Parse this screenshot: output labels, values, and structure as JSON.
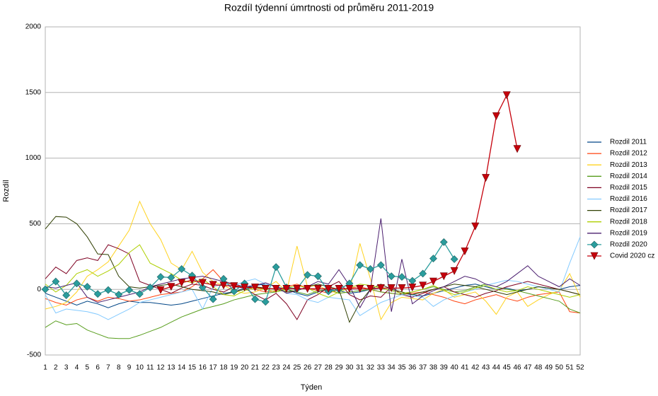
{
  "chart_data": {
    "type": "line",
    "title": "Rozdíl týdenní úmrtnosti od průměru 2011-2019",
    "x_label": "Týden",
    "y_label": "Rozdíl",
    "categories": [
      1,
      2,
      3,
      4,
      5,
      6,
      7,
      8,
      9,
      10,
      11,
      12,
      13,
      14,
      15,
      16,
      17,
      18,
      19,
      20,
      21,
      22,
      23,
      24,
      25,
      26,
      27,
      28,
      29,
      30,
      31,
      32,
      33,
      34,
      35,
      36,
      37,
      38,
      39,
      40,
      41,
      42,
      43,
      44,
      45,
      46,
      47,
      48,
      49,
      50,
      51,
      52
    ],
    "ylim": [
      -500,
      2000
    ],
    "yticks": [
      -500,
      0,
      500,
      1000,
      1500,
      2000
    ],
    "grid": true,
    "legend": "right",
    "series": [
      {
        "name": "Rozdil 2011",
        "color": "#004586",
        "values": [
          -30,
          -60,
          -90,
          -120,
          -90,
          -110,
          -140,
          -110,
          -90,
          -100,
          -100,
          -110,
          -120,
          -110,
          -90,
          -70,
          -50,
          -30,
          -20,
          10,
          30,
          40,
          20,
          0,
          -30,
          -50,
          -20,
          0,
          -10,
          -30,
          -20,
          0,
          10,
          -10,
          -30,
          -40,
          -50,
          -30,
          -10,
          10,
          30,
          40,
          20,
          0,
          10,
          -10,
          0,
          20,
          10,
          0,
          20,
          30
        ]
      },
      {
        "name": "Rozdil 2012",
        "color": "#ff420e",
        "values": [
          -70,
          -100,
          -120,
          -80,
          -60,
          -90,
          -60,
          -70,
          -90,
          -80,
          -60,
          -40,
          -30,
          -20,
          20,
          80,
          150,
          60,
          30,
          20,
          0,
          -20,
          -10,
          20,
          40,
          10,
          -10,
          -30,
          0,
          10,
          20,
          0,
          -20,
          -30,
          -40,
          -30,
          -20,
          -40,
          -60,
          -90,
          -110,
          -80,
          -60,
          -40,
          -70,
          -90,
          -60,
          -40,
          -30,
          -20,
          -170,
          -180
        ]
      },
      {
        "name": "Rozdil 2013",
        "color": "#ffd320",
        "values": [
          -150,
          -130,
          -100,
          -20,
          100,
          150,
          210,
          330,
          450,
          670,
          500,
          380,
          200,
          150,
          290,
          130,
          60,
          30,
          -10,
          -30,
          -20,
          10,
          60,
          -20,
          330,
          20,
          30,
          -10,
          -30,
          -20,
          350,
          80,
          -230,
          -100,
          -60,
          -70,
          -80,
          -30,
          0,
          -60,
          -40,
          -20,
          -90,
          -190,
          -60,
          -20,
          -130,
          -80,
          -40,
          -10,
          120,
          -60
        ]
      },
      {
        "name": "Rozdil 2014",
        "color": "#579d1c",
        "values": [
          -290,
          -240,
          -270,
          -260,
          -310,
          -340,
          -370,
          -375,
          -375,
          -350,
          -320,
          -290,
          -250,
          -210,
          -180,
          -150,
          -130,
          -110,
          -80,
          -60,
          -40,
          -30,
          -20,
          0,
          -20,
          -40,
          -10,
          0,
          -30,
          -20,
          -10,
          0,
          -20,
          -30,
          -40,
          -20,
          0,
          20,
          0,
          -20,
          -10,
          20,
          40,
          20,
          0,
          -10,
          -30,
          -50,
          -70,
          -90,
          -150,
          -180
        ]
      },
      {
        "name": "Rozdil 2015",
        "color": "#7e0021",
        "values": [
          80,
          170,
          120,
          220,
          240,
          220,
          340,
          310,
          270,
          60,
          30,
          0,
          -30,
          10,
          40,
          30,
          0,
          -20,
          20,
          10,
          -40,
          -80,
          -30,
          -110,
          -230,
          -80,
          -40,
          20,
          60,
          -40,
          -80,
          -50,
          -60,
          20,
          -40,
          -60,
          -30,
          0,
          20,
          -20,
          -40,
          -60,
          -30,
          -10,
          20,
          40,
          60,
          40,
          20,
          0,
          -20,
          -40
        ]
      },
      {
        "name": "Rozdil 2016",
        "color": "#83caff",
        "values": [
          -40,
          -180,
          -150,
          -160,
          -170,
          -190,
          -230,
          -190,
          -150,
          -100,
          -80,
          -60,
          -40,
          -20,
          0,
          -150,
          20,
          40,
          30,
          60,
          80,
          40,
          20,
          -30,
          -40,
          -80,
          -100,
          -60,
          -70,
          -80,
          -200,
          -150,
          -100,
          -70,
          -40,
          -50,
          -60,
          -130,
          -80,
          -50,
          -20,
          0,
          30,
          50,
          70,
          60,
          40,
          20,
          0,
          -20,
          200,
          400
        ]
      },
      {
        "name": "Rozdil 2017",
        "color": "#314004",
        "values": [
          460,
          555,
          550,
          500,
          400,
          270,
          265,
          100,
          20,
          10,
          20,
          30,
          40,
          20,
          0,
          -10,
          -20,
          -40,
          -20,
          0,
          20,
          10,
          0,
          -20,
          -10,
          20,
          40,
          20,
          0,
          -250,
          -100,
          0,
          40,
          0,
          -20,
          -40,
          -20,
          0,
          20,
          40,
          30,
          20,
          0,
          -20,
          -40,
          -20,
          0,
          20,
          10,
          0,
          -20,
          -40
        ]
      },
      {
        "name": "Rozdil 2018",
        "color": "#aecf00",
        "values": [
          40,
          -20,
          30,
          120,
          150,
          100,
          140,
          190,
          280,
          340,
          200,
          160,
          120,
          70,
          50,
          80,
          20,
          -40,
          -50,
          -10,
          10,
          0,
          -20,
          10,
          30,
          10,
          -30,
          -60,
          -20,
          10,
          40,
          30,
          10,
          -10,
          -30,
          -20,
          0,
          30,
          -10,
          -40,
          -20,
          10,
          30,
          0,
          -20,
          -10,
          20,
          0,
          -20,
          -40,
          -60,
          -40
        ]
      },
      {
        "name": "Rozdil 2019",
        "color": "#4b1f6f",
        "values": [
          20,
          10,
          30,
          50,
          -60,
          -100,
          -80,
          -60,
          -40,
          -20,
          20,
          40,
          60,
          80,
          90,
          100,
          80,
          60,
          40,
          20,
          30,
          50,
          20,
          -30,
          -10,
          20,
          60,
          40,
          150,
          30,
          -140,
          0,
          540,
          -170,
          230,
          -110,
          -50,
          -10,
          20,
          60,
          100,
          80,
          40,
          20,
          60,
          120,
          180,
          100,
          60,
          20,
          80,
          30
        ]
      },
      {
        "name": "Rozdil 2020",
        "color": "#2a9d9d",
        "marker": "diamond",
        "values": [
          0,
          60,
          -45,
          45,
          20,
          -35,
          -5,
          -40,
          -5,
          -35,
          15,
          95,
          90,
          155,
          105,
          15,
          -75,
          80,
          -15,
          45,
          -75,
          -95,
          170,
          15,
          5,
          110,
          100,
          -15,
          0,
          45,
          185,
          155,
          185,
          100,
          95,
          65,
          120,
          235,
          360,
          230,
          null,
          null,
          null,
          null,
          null,
          null,
          null,
          null,
          null,
          null,
          null,
          null
        ]
      },
      {
        "name": "Covid 2020 cz",
        "color": "#c5000b",
        "marker": "triangle-down",
        "values": [
          null,
          null,
          null,
          null,
          null,
          null,
          null,
          null,
          null,
          null,
          null,
          -5,
          20,
          50,
          70,
          50,
          35,
          30,
          25,
          15,
          15,
          5,
          5,
          5,
          5,
          5,
          5,
          5,
          5,
          5,
          5,
          5,
          10,
          10,
          10,
          15,
          30,
          60,
          100,
          140,
          290,
          480,
          850,
          1320,
          1480,
          1070,
          null,
          null,
          null,
          null,
          null,
          null
        ]
      }
    ]
  }
}
